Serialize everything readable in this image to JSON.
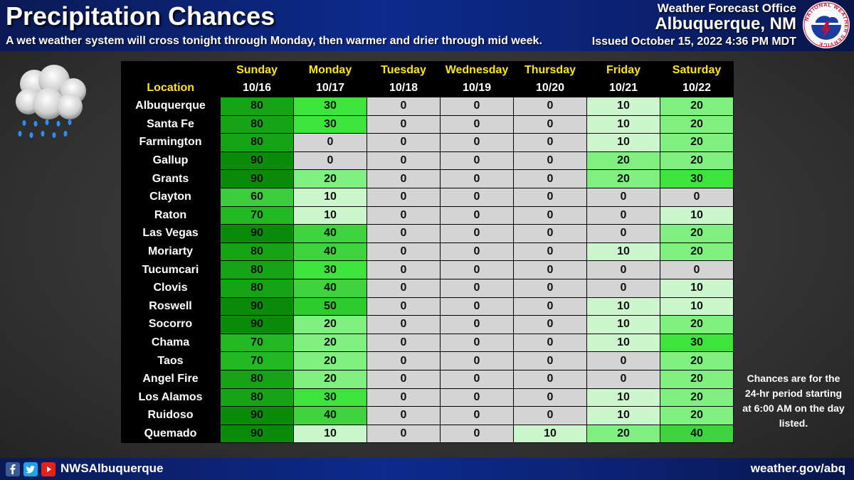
{
  "header": {
    "title": "Precipitation Chances",
    "subtitle": "A wet weather system will cross tonight through Monday, then warmer and drier through mid week.",
    "office": "Weather Forecast Office",
    "city": "Albuquerque, NM",
    "issued": "Issued October 15, 2022 4:36 PM MDT",
    "logo_text": "NATIONAL WEATHER SERVICE"
  },
  "table": {
    "location_header": "Location",
    "days": [
      {
        "day": "Sunday",
        "date": "10/16"
      },
      {
        "day": "Monday",
        "date": "10/17"
      },
      {
        "day": "Tuesday",
        "date": "10/18"
      },
      {
        "day": "Wednesday",
        "date": "10/19"
      },
      {
        "day": "Thursday",
        "date": "10/20"
      },
      {
        "day": "Friday",
        "date": "10/21"
      },
      {
        "day": "Saturday",
        "date": "10/22"
      }
    ],
    "rows": [
      {
        "location": "Albuquerque",
        "values": [
          "80",
          "30",
          "0",
          "0",
          "0",
          "10",
          "20"
        ]
      },
      {
        "location": "Santa Fe",
        "values": [
          "80",
          "30",
          "0",
          "0",
          "0",
          "10",
          "20"
        ]
      },
      {
        "location": "Farmington",
        "values": [
          "80",
          "0",
          "0",
          "0",
          "0",
          "10",
          "20"
        ]
      },
      {
        "location": "Gallup",
        "values": [
          "90",
          "0",
          "0",
          "0",
          "0",
          "20",
          "20"
        ]
      },
      {
        "location": "Grants",
        "values": [
          "90",
          "20",
          "0",
          "0",
          "0",
          "20",
          "30"
        ]
      },
      {
        "location": "Clayton",
        "values": [
          "60",
          "10",
          "0",
          "0",
          "0",
          "0",
          "0"
        ]
      },
      {
        "location": "Raton",
        "values": [
          "70",
          "10",
          "0",
          "0",
          "0",
          "0",
          "10"
        ]
      },
      {
        "location": "Las Vegas",
        "values": [
          "90",
          "40",
          "0",
          "0",
          "0",
          "0",
          "20"
        ]
      },
      {
        "location": "Moriarty",
        "values": [
          "80",
          "40",
          "0",
          "0",
          "0",
          "10",
          "20"
        ]
      },
      {
        "location": "Tucumcari",
        "values": [
          "80",
          "30",
          "0",
          "0",
          "0",
          "0",
          "0"
        ]
      },
      {
        "location": "Clovis",
        "values": [
          "80",
          "40",
          "0",
          "0",
          "0",
          "0",
          "10"
        ]
      },
      {
        "location": "Roswell",
        "values": [
          "90",
          "50",
          "0",
          "0",
          "0",
          "10",
          "10"
        ]
      },
      {
        "location": "Socorro",
        "values": [
          "90",
          "20",
          "0",
          "0",
          "0",
          "10",
          "20"
        ]
      },
      {
        "location": "Chama",
        "values": [
          "70",
          "20",
          "0",
          "0",
          "0",
          "10",
          "30"
        ]
      },
      {
        "location": "Taos",
        "values": [
          "70",
          "20",
          "0",
          "0",
          "0",
          "0",
          "20"
        ]
      },
      {
        "location": "Angel Fire",
        "values": [
          "80",
          "20",
          "0",
          "0",
          "0",
          "0",
          "20"
        ]
      },
      {
        "location": "Los Alamos",
        "values": [
          "80",
          "30",
          "0",
          "0",
          "0",
          "10",
          "20"
        ]
      },
      {
        "location": "Ruidoso",
        "values": [
          "90",
          "40",
          "0",
          "0",
          "0",
          "10",
          "20"
        ]
      },
      {
        "location": "Quemado",
        "values": [
          "90",
          "10",
          "0",
          "0",
          "10",
          "20",
          "40"
        ]
      }
    ]
  },
  "colors": {
    "0": "#d4d4d4",
    "10": "#ccf7cc",
    "20": "#80f080",
    "30": "#3ce43c",
    "40": "#3fd43f",
    "50": "#2ecb2e",
    "60": "#3ccc3c",
    "70": "#22b822",
    "80": "#16a316",
    "90": "#0a8b0a"
  },
  "note": "Chances are for the 24-hr period starting at 6:00 AM on the day listed.",
  "footer": {
    "handle": "NWSAlbuquerque",
    "website": "weather.gov/abq"
  }
}
